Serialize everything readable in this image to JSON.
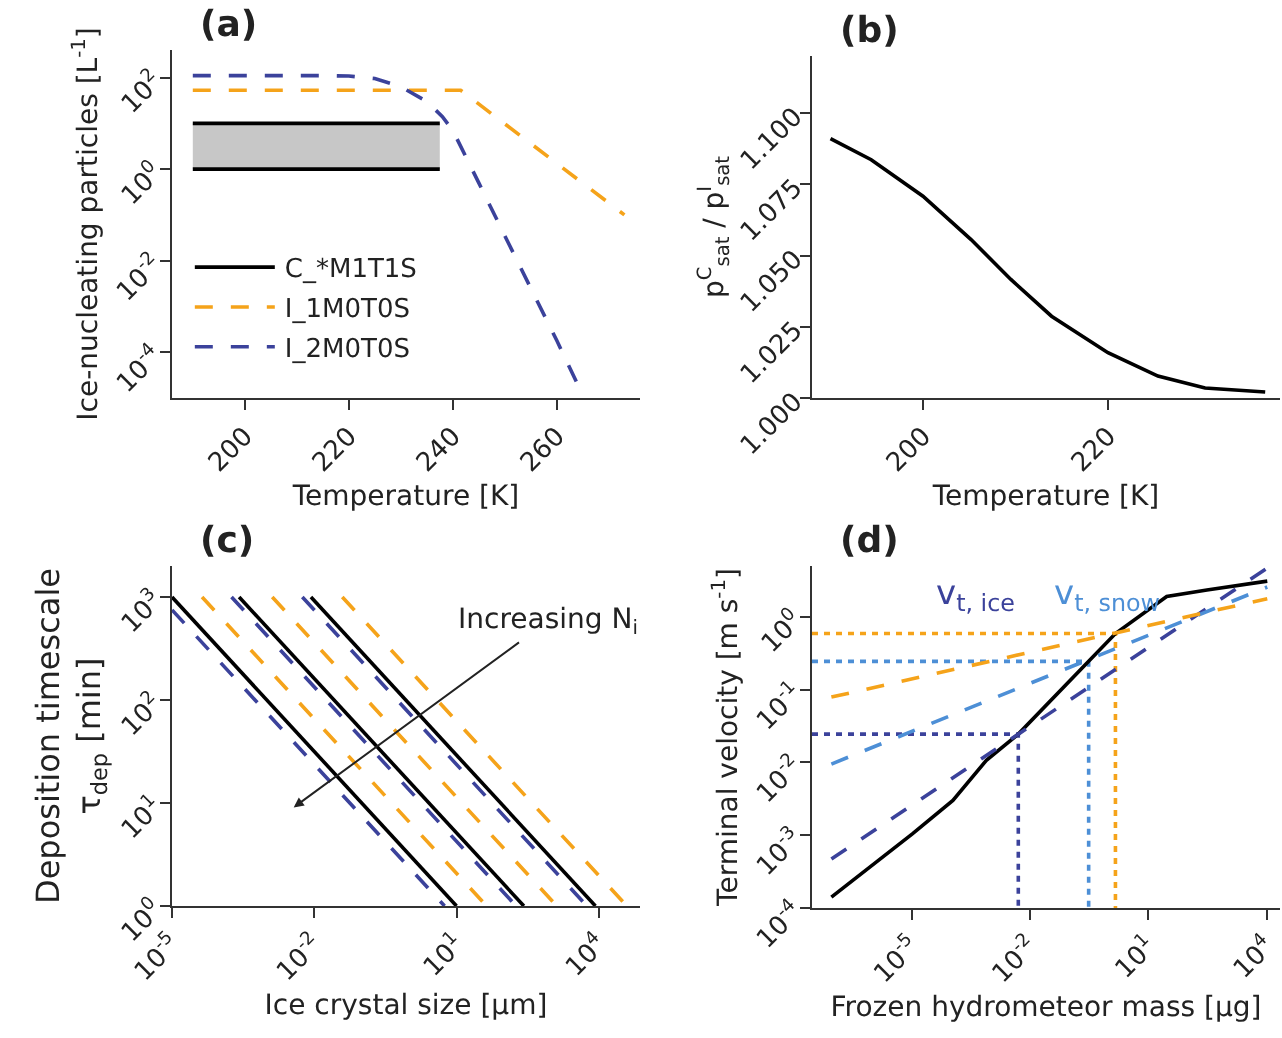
{
  "chart_data": [
    {
      "type": "line",
      "title": "(a)",
      "xlabel": "Temperature [K]",
      "ylabel": "Ice-nucleating particles [L$^{-1}$]",
      "log": "y",
      "grid": false,
      "legend": "bottom left",
      "marker": "none",
      "xlim": [
        186,
        276
      ],
      "xticks": [
        200,
        220,
        240,
        260
      ],
      "ylim": [
        1e-05,
        400
      ],
      "yticks": [
        {
          "value": 0.0001,
          "label": "10$^{-4}$"
        },
        {
          "value": 0.01,
          "label": "10$^{-2}$"
        },
        {
          "value": 1,
          "label": "10$^{0}$"
        },
        {
          "value": 100,
          "label": "10$^{2}$"
        }
      ],
      "series": [
        {
          "name": "C_*M1T1S",
          "color": "#000000",
          "line_style": "solid",
          "x": [
            190,
            237.5
          ],
          "values": [
            10,
            10
          ],
          "lower": [
            1,
            1
          ],
          "upper": [
            10,
            10
          ]
        },
        {
          "color": "#000000",
          "line_style": "solid",
          "x": [
            190,
            237.5
          ],
          "values": [
            1,
            1
          ]
        },
        {
          "name": "I_1M0T0S",
          "color": "#f5a31a",
          "line_style": "dashed",
          "x": [
            190,
            241.5,
            273
          ],
          "values": [
            53,
            53,
            0.1
          ]
        },
        {
          "name": "I_2M0T0S",
          "color": "#3b429b",
          "line_style": "dashed",
          "x": [
            190,
            215,
            220,
            225,
            230,
            235,
            238,
            240,
            245,
            250,
            255,
            260,
            264
          ],
          "values": [
            110,
            110,
            108,
            95,
            63,
            30,
            14,
            7,
            0.5,
            0.035,
            0.0025,
            0.00018,
            2e-05
          ]
        }
      ]
    },
    {
      "type": "line",
      "title": "(b)",
      "xlabel": "Temperature [K]",
      "ylabel": "p$^{C}$$_{sat}$ / p$^{I}$$_{sat}$",
      "grid": false,
      "legend": false,
      "marker": "none",
      "xlim": [
        188,
        238.6
      ],
      "xticks": [
        200,
        220
      ],
      "ylim": [
        1.0,
        1.12
      ],
      "yticks": [
        {
          "value": 1.0,
          "label": "1.000"
        },
        {
          "value": 1.025,
          "label": "1.025"
        },
        {
          "value": 1.05,
          "label": "1.050"
        },
        {
          "value": 1.075,
          "label": "1.075"
        },
        {
          "value": 1.1,
          "label": "1.100"
        }
      ],
      "series": [
        {
          "color": "#000000",
          "line_style": "solid",
          "x": [
            190,
            194.4,
            200,
            205.2,
            209.5,
            213.9,
            220,
            225.4,
            230.5,
            237
          ],
          "values": [
            1.091,
            1.0836,
            1.0708,
            1.0556,
            1.0416,
            1.0287,
            1.0159,
            1.0077,
            1.0035,
            1.0021
          ]
        }
      ]
    },
    {
      "type": "line",
      "title": "(c)",
      "xlabel": "Ice crystal size [μm]",
      "ylabel": "Deposition timescale\nτ$_{dep}$ [min]",
      "log": "xy",
      "grid": false,
      "legend": false,
      "marker": "none",
      "xlim": [
        1e-05,
        74000
      ],
      "xticks": [
        {
          "value": 1e-05,
          "label": "10$^{-5}$"
        },
        {
          "value": 0.01,
          "label": "10$^{-2}$"
        },
        {
          "value": 10,
          "label": "10$^{1}$"
        },
        {
          "value": 10000,
          "label": "10$^{4}$"
        }
      ],
      "ylim": [
        1,
        2000
      ],
      "yticks": [
        {
          "value": 1,
          "label": "10$^{0}$"
        },
        {
          "value": 10,
          "label": "10$^{1}$"
        },
        {
          "value": 100,
          "label": "10$^{2}$"
        },
        {
          "value": 1000,
          "label": "10$^{3}$"
        }
      ],
      "annotations": [
        "Increasing N$_{i}$"
      ],
      "series": [
        {
          "color": "#3b429b",
          "line_style": "dashed",
          "x": [
            1e-05,
            5.6
          ],
          "values": [
            750,
            1
          ]
        },
        {
          "color": "#3b429b",
          "line_style": "dashed",
          "x": [
            0.00018,
            180
          ],
          "values": [
            1000,
            1
          ]
        },
        {
          "color": "#3b429b",
          "line_style": "dashed",
          "x": [
            0.0056,
            5600
          ],
          "values": [
            1000,
            1
          ]
        },
        {
          "color": "#f5a31a",
          "line_style": "dashed",
          "x": [
            4.3e-05,
            43
          ],
          "values": [
            1000,
            1
          ]
        },
        {
          "color": "#f5a31a",
          "line_style": "dashed",
          "x": [
            0.0013,
            1300
          ],
          "values": [
            1000,
            1
          ]
        },
        {
          "color": "#f5a31a",
          "line_style": "dashed",
          "x": [
            0.039,
            39000
          ],
          "values": [
            1000,
            1
          ]
        },
        {
          "color": "#000000",
          "line_style": "solid",
          "x": [
            1e-05,
            10
          ],
          "values": [
            1000,
            1
          ]
        },
        {
          "color": "#000000",
          "line_style": "solid",
          "x": [
            0.00026,
            263
          ],
          "values": [
            1000,
            1
          ]
        },
        {
          "color": "#000000",
          "line_style": "solid",
          "x": [
            0.0085,
            8500
          ],
          "values": [
            1000,
            1
          ]
        }
      ]
    },
    {
      "type": "line",
      "title": "(d)",
      "xlabel": "Frozen hydrometeor mass [μg]",
      "ylabel": "Terminal velocity [m s$^{-1}$]",
      "log": "xy",
      "grid": false,
      "legend": false,
      "marker": "none",
      "xlim": [
        3e-08,
        22000
      ],
      "xticks": [
        {
          "value": 1e-05,
          "label": "10$^{-5}$"
        },
        {
          "value": 0.01,
          "label": "10$^{-2}$"
        },
        {
          "value": 10,
          "label": "10$^{1}$"
        },
        {
          "value": 10000,
          "label": "10$^{4}$"
        }
      ],
      "ylim": [
        0.0001,
        5
      ],
      "yticks": [
        {
          "value": 0.0001,
          "label": "10$^{-4}$"
        },
        {
          "value": 0.001,
          "label": "10$^{-3}$"
        },
        {
          "value": 0.01,
          "label": "10$^{-2}$"
        },
        {
          "value": 0.1,
          "label": "10$^{-1}$"
        },
        {
          "value": 1,
          "label": "10$^{0}$"
        }
      ],
      "series": [
        {
          "color": "#3b429b",
          "line_style": "dotted",
          "x": [
            3e-08,
            0.0051,
            0.0051
          ],
          "values": [
            0.0245,
            0.0245,
            0.0001
          ]
        },
        {
          "color": "#4d8fd6",
          "line_style": "dotted",
          "x": [
            3e-08,
            0.31,
            0.31
          ],
          "values": [
            0.245,
            0.245,
            0.0001
          ]
        },
        {
          "color": "#f5a31a",
          "line_style": "dotted",
          "x": [
            3e-08,
            1.48,
            1.48
          ],
          "values": [
            0.59,
            0.59,
            0.0001
          ]
        },
        {
          "color": "#000000",
          "line_style": "solid",
          "x": [
            9.3e-08,
            1.07e-05,
            0.000112,
            0.00079,
            0.0051,
            0.31,
            1.48,
            29.5,
            309,
            10470
          ],
          "values": [
            0.000141,
            0.00105,
            0.003,
            0.0107,
            0.0245,
            0.245,
            0.59,
            1.9,
            2.34,
            3.1
          ]
        },
        {
          "name": "v$_{t, ice}$",
          "color": "#3b429b",
          "line_style": "dashed",
          "x": [
            9.3e-08,
            10470
          ],
          "values": [
            0.00047,
            4.7
          ]
        },
        {
          "name": "v$_{t, snow}$",
          "color": "#4d8fd6",
          "line_style": "dashed",
          "x": [
            9.3e-08,
            10470
          ],
          "values": [
            0.0095,
            2.57
          ]
        },
        {
          "color": "#f5a31a",
          "line_style": "dashed",
          "x": [
            9.3e-08,
            10470
          ],
          "values": [
            0.079,
            1.78
          ]
        }
      ]
    }
  ]
}
